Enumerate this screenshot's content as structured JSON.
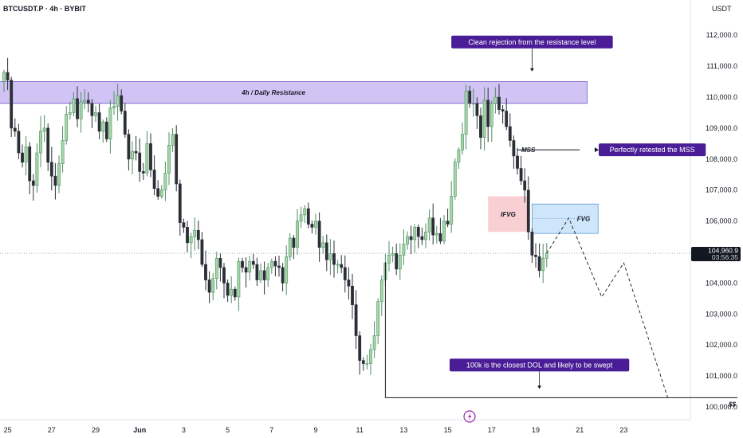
{
  "header": {
    "symbol": "BTCUSDT.P · 4h · BYBIT",
    "currency": "USDT"
  },
  "colors": {
    "up": "#4f8f63",
    "up_fill": "#a5d6a7",
    "down": "#2b2f36",
    "resistance": "#d1c4f5",
    "resistance_border": "#6a4fc7",
    "ifvg": "#f8d0d3",
    "fvg": "#cfe5fa",
    "fvg_border": "#5b9bd5",
    "callout": "#4a1d96",
    "last_price_bg": "#131722",
    "lightning": "#9c27b0"
  },
  "chart_data": {
    "type": "candlestick",
    "ylim": [
      99800,
      112600
    ],
    "y_ticks": [
      "112,000.0",
      "111,000.0",
      "110,000.0",
      "109,000.0",
      "108,000.0",
      "107,000.0",
      "106,000.0",
      "105,000.0",
      "104,000.0",
      "103,000.0",
      "102,000.0",
      "101,000.0",
      "100,000.0"
    ],
    "x_ticks": [
      "23",
      "25",
      "27",
      "29",
      "Jun",
      "3",
      "5",
      "7",
      "9",
      "11",
      "13",
      "15",
      "17",
      "19",
      "21",
      "23"
    ],
    "x_tick_index": [
      -11,
      1,
      13,
      25,
      37,
      49,
      61,
      73,
      85,
      97,
      109,
      121,
      133,
      145,
      157,
      169
    ],
    "last_price": {
      "value": "104,960.9",
      "countdown": "03:56:35"
    },
    "candles_close": [
      110800,
      110550,
      109000,
      108900,
      108200,
      107900,
      108400,
      107300,
      107150,
      108200,
      108900,
      109000,
      107900,
      107450,
      107150,
      107850,
      108600,
      109450,
      109500,
      109950,
      109300,
      109850,
      109900,
      109800,
      109400,
      109500,
      108900,
      109200,
      108650,
      109650,
      109700,
      110050,
      109550,
      108800,
      108000,
      108250,
      108200,
      107600,
      107550,
      108500,
      107650,
      107050,
      106800,
      107000,
      107550,
      108450,
      108800,
      107200,
      105950,
      105800,
      105300,
      105500,
      105700,
      105400,
      104600,
      104100,
      103700,
      104150,
      104800,
      104500,
      104000,
      103600,
      103800,
      103550,
      104700,
      104500,
      104350,
      104700,
      104600,
      104100,
      104400,
      104100,
      104500,
      104700,
      104550,
      104500,
      104000,
      104850,
      105450,
      105150,
      106000,
      106200,
      106400,
      105900,
      105800,
      106000,
      105150,
      105300,
      104750,
      104950,
      104600,
      104600,
      104500,
      104100,
      103900,
      103300,
      102300,
      101500,
      101400,
      101400,
      101850,
      102300,
      103400,
      104100,
      104650,
      104900,
      104950,
      104450,
      104900,
      105250,
      105500,
      105400,
      105800,
      105500,
      105400,
      105650,
      106100,
      105550,
      105600,
      105350,
      106000,
      105900,
      106800,
      107900,
      108300,
      108800,
      110200,
      109800,
      109800,
      109400,
      108700,
      109900,
      109050,
      109800,
      110000,
      109600,
      109550,
      109050,
      108600,
      108100,
      107700,
      107300,
      107000,
      105650,
      104900,
      104850,
      104400,
      104800,
      104960.9
    ],
    "zones": {
      "resistance": {
        "label": "4h / Daily Resistance",
        "top": 110500,
        "bottom": 109800,
        "from": -12,
        "to": 159
      },
      "ifvg": {
        "label": "IFVG",
        "top": 106800,
        "bottom": 105650,
        "from": 132,
        "to": 143
      },
      "fvg": {
        "label": "FVG",
        "top": 106550,
        "bottom": 105600,
        "from": 144,
        "to": 162
      },
      "mss": {
        "label": "MSS",
        "value": 108300,
        "from": 140,
        "to": 157
      },
      "dol": {
        "label": "$$",
        "value": 100300,
        "from": 104,
        "to": 200
      }
    },
    "projection": [
      [
        148,
        104960.9
      ],
      [
        154,
        106100
      ],
      [
        163,
        103550
      ],
      [
        169,
        104650
      ],
      [
        181,
        100300
      ]
    ],
    "annotations": [
      {
        "text": "Clean rejection from the resistance level",
        "x": 144,
        "y": 110700
      },
      {
        "text": "Perfectly retested the MSS",
        "x": 160,
        "y": 108300
      },
      {
        "text": "100k is the closest DOL and likely to be swept",
        "x": 146,
        "y": 100300
      }
    ]
  }
}
